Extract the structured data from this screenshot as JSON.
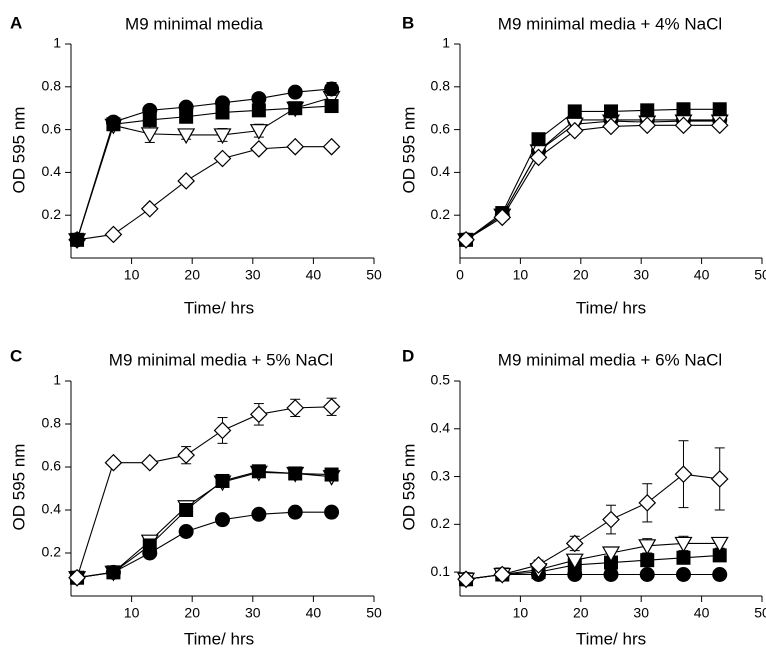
{
  "chart_data": [
    {
      "panel": "A",
      "type": "line",
      "title": "M9 minimal media",
      "xlabel": "Time/ hrs",
      "ylabel": "OD 595 nm",
      "xlim": [
        0,
        50
      ],
      "ylim": [
        0,
        1.0
      ],
      "xticks": [
        10,
        20,
        30,
        40,
        50
      ],
      "yticks": [
        0.2,
        0.4,
        0.6,
        0.8,
        1.0
      ],
      "x": [
        1,
        7,
        13,
        19,
        25,
        31,
        37,
        43
      ],
      "series": [
        {
          "marker": "diamond-open",
          "values": [
            0.085,
            0.11,
            0.23,
            0.36,
            0.465,
            0.51,
            0.52,
            0.52
          ],
          "err": [
            0.01,
            0.01,
            0.01,
            0.01,
            0.01,
            0.01,
            0.01,
            0.01
          ]
        },
        {
          "marker": "triangle-down-open",
          "values": [
            0.085,
            0.62,
            0.58,
            0.575,
            0.575,
            0.595,
            0.7,
            0.75
          ],
          "err": [
            0.01,
            0.01,
            0.04,
            0.02,
            0.03,
            0.03,
            0.02,
            0.02
          ]
        },
        {
          "marker": "square-filled",
          "values": [
            0.085,
            0.625,
            0.645,
            0.66,
            0.68,
            0.69,
            0.7,
            0.71
          ],
          "err": [
            0.01,
            0.01,
            0.01,
            0.01,
            0.01,
            0.01,
            0.01,
            0.01
          ]
        },
        {
          "marker": "circle-filled",
          "values": [
            0.085,
            0.635,
            0.69,
            0.705,
            0.725,
            0.745,
            0.775,
            0.79
          ],
          "err": [
            0.01,
            0.01,
            0.01,
            0.01,
            0.01,
            0.01,
            0.02,
            0.03
          ]
        }
      ]
    },
    {
      "panel": "B",
      "type": "line",
      "title": "M9 minimal media + 4% NaCl",
      "xlabel": "Time/ hrs",
      "ylabel": "OD 595 nm",
      "xlim": [
        0,
        50
      ],
      "ylim": [
        0,
        1.0
      ],
      "xticks": [
        0,
        10,
        20,
        30,
        40,
        50
      ],
      "yticks": [
        0.2,
        0.4,
        0.6,
        0.8,
        1.0
      ],
      "x": [
        1,
        7,
        13,
        19,
        25,
        31,
        37,
        43
      ],
      "series": [
        {
          "marker": "circle-filled",
          "values": [
            0.085,
            0.2,
            0.5,
            0.645,
            0.645,
            0.645,
            0.645,
            0.645
          ],
          "err": [
            0.01,
            0.01,
            0.01,
            0.01,
            0.01,
            0.01,
            0.01,
            0.01
          ]
        },
        {
          "marker": "triangle-down-open",
          "values": [
            0.085,
            0.2,
            0.5,
            0.625,
            0.64,
            0.635,
            0.64,
            0.64
          ],
          "err": [
            0.01,
            0.01,
            0.01,
            0.01,
            0.01,
            0.01,
            0.01,
            0.01
          ]
        },
        {
          "marker": "square-filled",
          "values": [
            0.085,
            0.21,
            0.555,
            0.685,
            0.685,
            0.69,
            0.695,
            0.695
          ],
          "err": [
            0.01,
            0.01,
            0.01,
            0.01,
            0.01,
            0.01,
            0.01,
            0.01
          ]
        },
        {
          "marker": "diamond-open",
          "values": [
            0.085,
            0.19,
            0.47,
            0.595,
            0.615,
            0.62,
            0.62,
            0.62
          ],
          "err": [
            0.01,
            0.01,
            0.01,
            0.01,
            0.01,
            0.01,
            0.01,
            0.01
          ]
        }
      ]
    },
    {
      "panel": "C",
      "type": "line",
      "title": "M9 minimal media + 5% NaCl",
      "xlabel": "Time/ hrs",
      "ylabel": "OD 595 nm",
      "xlim": [
        0,
        50
      ],
      "ylim": [
        0,
        1.0
      ],
      "xticks": [
        10,
        20,
        30,
        40,
        50
      ],
      "yticks": [
        0.2,
        0.4,
        0.6,
        0.8,
        1.0
      ],
      "x": [
        1,
        7,
        13,
        19,
        25,
        31,
        37,
        43
      ],
      "series": [
        {
          "marker": "circle-filled",
          "values": [
            0.085,
            0.11,
            0.2,
            0.3,
            0.355,
            0.38,
            0.39,
            0.39
          ],
          "err": [
            0.01,
            0.01,
            0.01,
            0.01,
            0.01,
            0.01,
            0.01,
            0.01
          ]
        },
        {
          "marker": "triangle-down-open",
          "values": [
            0.085,
            0.11,
            0.255,
            0.415,
            0.53,
            0.575,
            0.57,
            0.555
          ],
          "err": [
            0.01,
            0.01,
            0.01,
            0.02,
            0.02,
            0.02,
            0.02,
            0.02
          ]
        },
        {
          "marker": "square-filled",
          "values": [
            0.085,
            0.11,
            0.235,
            0.4,
            0.535,
            0.58,
            0.57,
            0.565
          ],
          "err": [
            0.01,
            0.01,
            0.01,
            0.01,
            0.01,
            0.01,
            0.01,
            0.01
          ]
        },
        {
          "marker": "diamond-open",
          "values": [
            0.085,
            0.62,
            0.62,
            0.655,
            0.77,
            0.845,
            0.875,
            0.88
          ],
          "err": [
            0.01,
            0.01,
            0.01,
            0.04,
            0.06,
            0.05,
            0.04,
            0.04
          ]
        }
      ]
    },
    {
      "panel": "D",
      "type": "line",
      "title": "M9 minimal media + 6% NaCl",
      "xlabel": "Time/ hrs",
      "ylabel": "OD 595 nm",
      "xlim": [
        0,
        50
      ],
      "ylim": [
        0.05,
        0.5
      ],
      "xticks": [
        10,
        20,
        30,
        40,
        50
      ],
      "yticks": [
        0.1,
        0.2,
        0.3,
        0.4,
        0.5
      ],
      "x": [
        1,
        7,
        13,
        19,
        25,
        31,
        37,
        43
      ],
      "series": [
        {
          "marker": "circle-filled",
          "values": [
            0.085,
            0.095,
            0.095,
            0.095,
            0.095,
            0.095,
            0.095,
            0.095
          ],
          "err": [
            0.005,
            0.005,
            0.005,
            0.005,
            0.005,
            0.005,
            0.005,
            0.005
          ]
        },
        {
          "marker": "square-filled",
          "values": [
            0.085,
            0.095,
            0.1,
            0.115,
            0.12,
            0.125,
            0.13,
            0.135
          ],
          "err": [
            0.005,
            0.005,
            0.005,
            0.005,
            0.005,
            0.01,
            0.01,
            0.01
          ]
        },
        {
          "marker": "triangle-down-open",
          "values": [
            0.085,
            0.095,
            0.105,
            0.125,
            0.14,
            0.155,
            0.16,
            0.16
          ],
          "err": [
            0.005,
            0.005,
            0.005,
            0.01,
            0.01,
            0.015,
            0.015,
            0.01
          ]
        },
        {
          "marker": "diamond-open",
          "values": [
            0.085,
            0.095,
            0.115,
            0.16,
            0.21,
            0.245,
            0.305,
            0.295
          ],
          "err": [
            0.005,
            0.005,
            0.01,
            0.015,
            0.03,
            0.04,
            0.07,
            0.065
          ]
        }
      ]
    }
  ]
}
